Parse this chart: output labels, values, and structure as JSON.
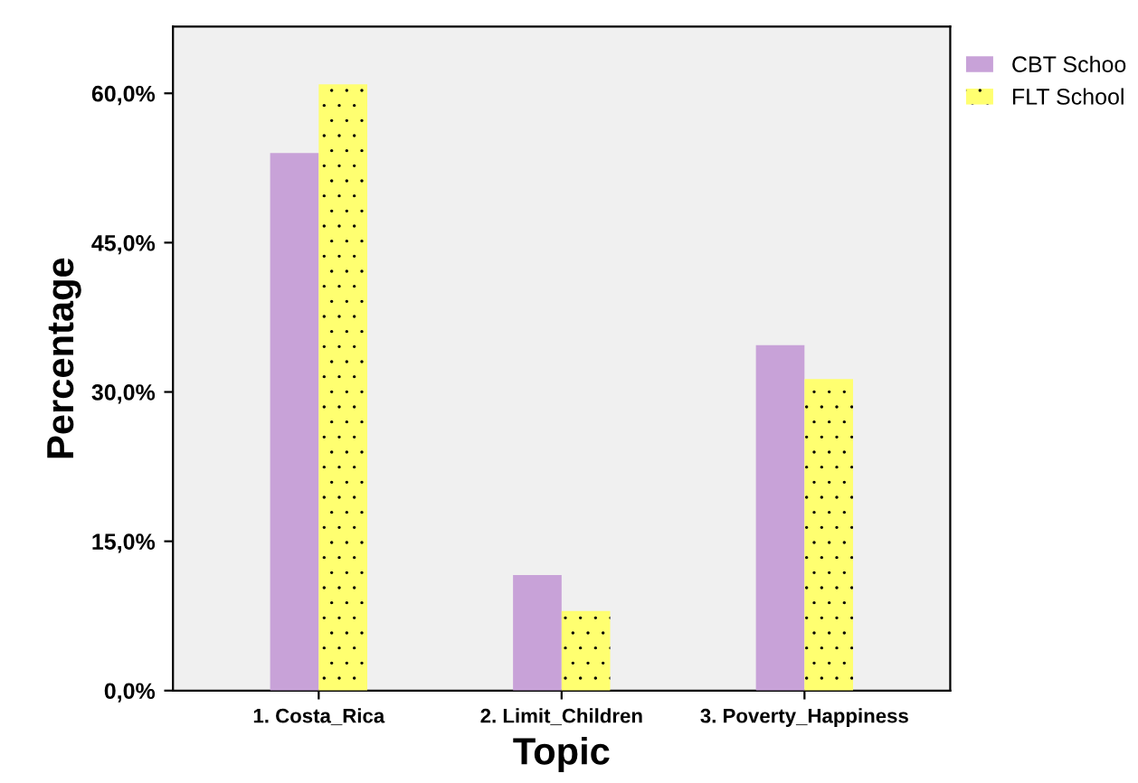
{
  "chart_data": {
    "type": "bar",
    "xlabel": "Topic",
    "ylabel": "Percentage",
    "categories": [
      "1. Costa_Rica",
      "2. Limit_Children",
      "3. Poverty_Happiness"
    ],
    "series": [
      {
        "name": "CBT Schoo",
        "color": "#c8a2d8",
        "values": [
          54.0,
          11.6,
          34.7
        ]
      },
      {
        "name": "FLT School",
        "color": "#ffff70",
        "values": [
          60.9,
          8.0,
          31.3
        ]
      }
    ],
    "ylim": [
      0,
      66.7
    ],
    "yticks": [
      {
        "value": 0,
        "label": "0,0%"
      },
      {
        "value": 15,
        "label": "15,0%"
      },
      {
        "value": 30,
        "label": "30,0%"
      },
      {
        "value": 45,
        "label": "45,0%"
      },
      {
        "value": 60,
        "label": "60,0%"
      }
    ],
    "legend": "top right",
    "grid": false
  }
}
